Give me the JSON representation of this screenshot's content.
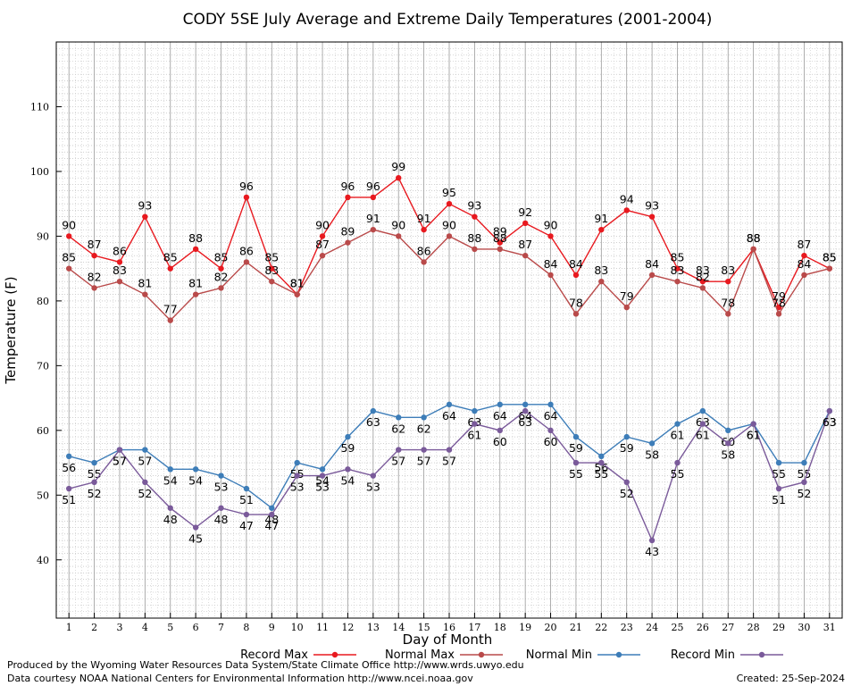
{
  "chart_data": {
    "type": "line",
    "title": "CODY 5SE July Average and Extreme Daily Temperatures (2001-2004)",
    "xlabel": "Day of Month",
    "ylabel": "Temperature (F)",
    "x": [
      1,
      2,
      3,
      4,
      5,
      6,
      7,
      8,
      9,
      10,
      11,
      12,
      13,
      14,
      15,
      16,
      17,
      18,
      19,
      20,
      21,
      22,
      23,
      24,
      25,
      26,
      27,
      28,
      29,
      30,
      31
    ],
    "xlim": [
      0.5,
      31.5
    ],
    "ylim": [
      31,
      120
    ],
    "yticks": [
      40,
      50,
      60,
      70,
      80,
      90,
      100,
      110
    ],
    "grid": true,
    "legend_position": "bottom",
    "series": [
      {
        "name": "Record Max",
        "color": "#e8191f",
        "label_position": "above",
        "values": [
          90,
          87,
          86,
          93,
          85,
          88,
          85,
          96,
          85,
          81,
          90,
          96,
          96,
          99,
          91,
          95,
          93,
          89,
          92,
          90,
          84,
          91,
          94,
          93,
          85,
          83,
          83,
          88,
          79,
          87,
          85
        ]
      },
      {
        "name": "Normal Max",
        "color": "#b94a4a",
        "label_position": "above",
        "values": [
          85,
          82,
          83,
          81,
          77,
          81,
          82,
          86,
          83,
          81,
          87,
          89,
          91,
          90,
          86,
          90,
          88,
          88,
          87,
          84,
          78,
          83,
          79,
          84,
          83,
          82,
          78,
          88,
          78,
          84,
          85
        ]
      },
      {
        "name": "Normal Min",
        "color": "#3d7db8",
        "label_position": "below",
        "values": [
          56,
          55,
          57,
          57,
          54,
          54,
          53,
          51,
          48,
          55,
          54,
          59,
          63,
          62,
          62,
          64,
          63,
          64,
          64,
          64,
          59,
          56,
          59,
          58,
          61,
          63,
          60,
          61,
          55,
          55,
          63
        ]
      },
      {
        "name": "Record Min",
        "color": "#7a5a9a",
        "label_position": "below",
        "values": [
          51,
          52,
          57,
          52,
          48,
          45,
          48,
          47,
          47,
          53,
          53,
          54,
          53,
          57,
          57,
          57,
          61,
          60,
          63,
          60,
          55,
          55,
          52,
          43,
          55,
          61,
          58,
          61,
          51,
          52,
          63
        ]
      }
    ]
  },
  "footer": {
    "credit_line1": "Produced by the Wyoming Water Resources Data System/State Climate Office http://www.wrds.uwyo.edu",
    "credit_line2": "Data courtesy NOAA National Centers for Environmental Information http://www.ncei.noaa.gov",
    "created": "Created:  25-Sep-2024"
  }
}
